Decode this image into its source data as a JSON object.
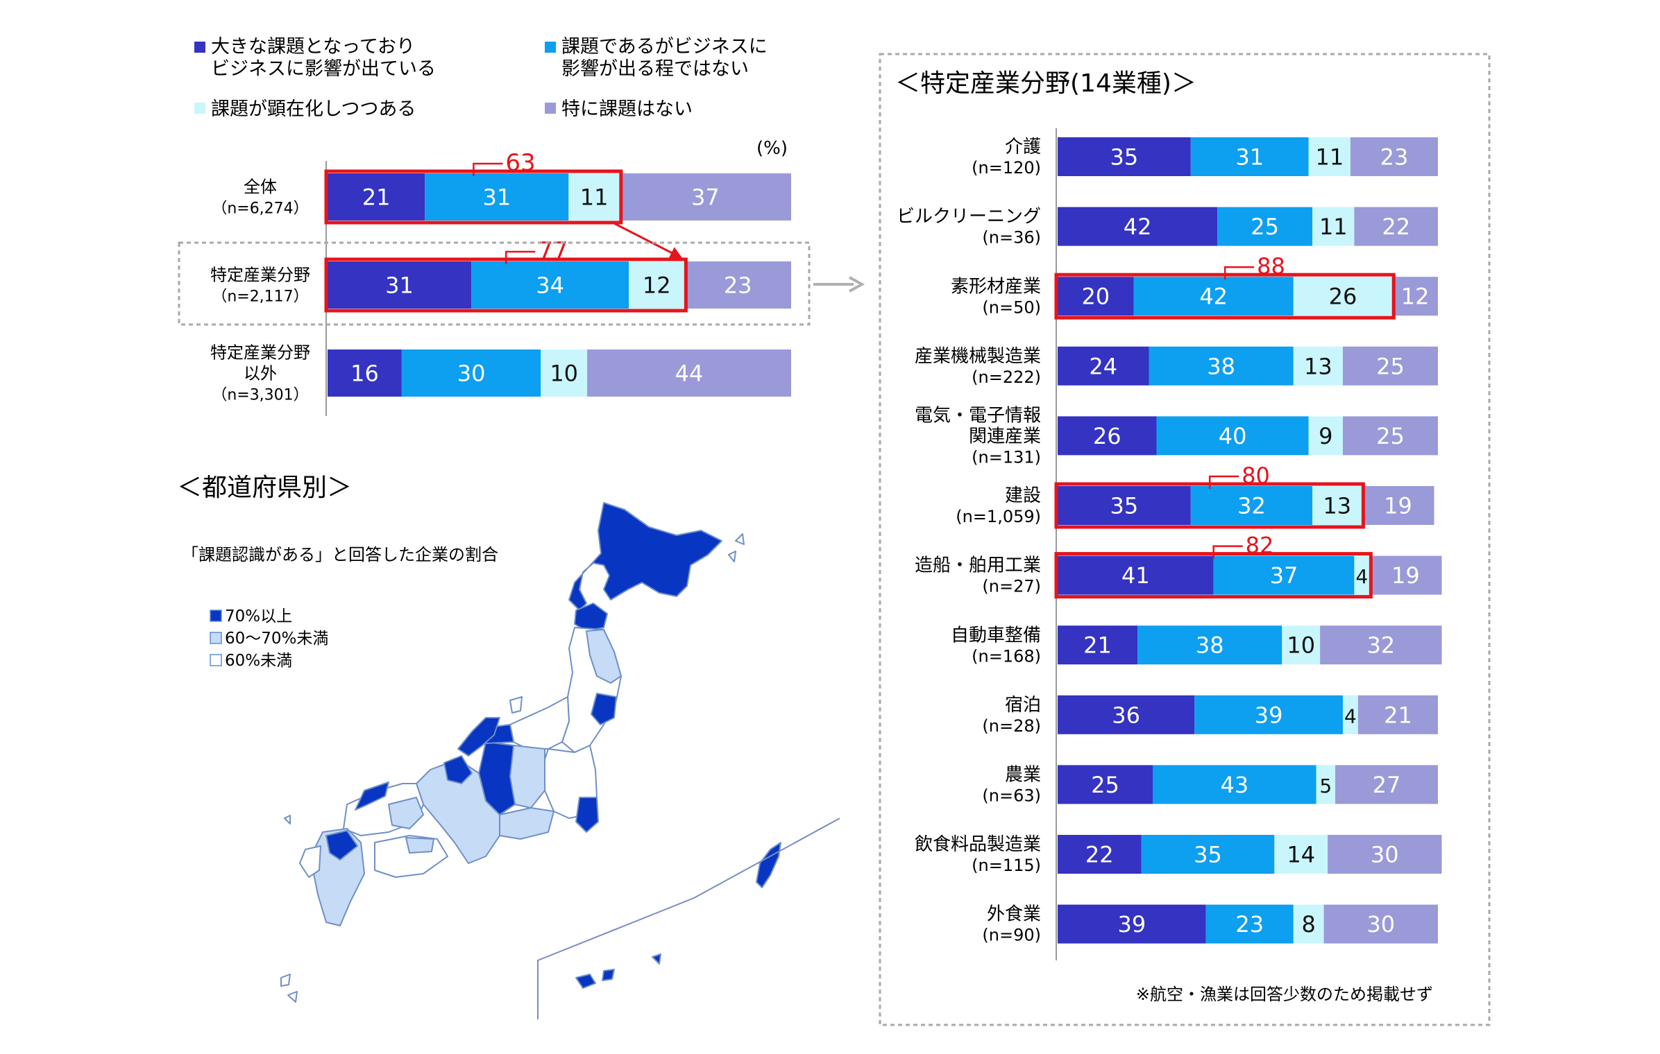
{
  "units": "(%)",
  "legend": [
    {
      "label1": "大きな課題となっており",
      "label2": "ビジネスに影響が出ている",
      "color": "#3433c2"
    },
    {
      "label1": "課題であるがビジネスに",
      "label2": "影響が出る程ではない",
      "color": "#0d9ff0"
    },
    {
      "label1": "課題が顕在化しつつある",
      "label2": "",
      "color": "#c9f6fd"
    },
    {
      "label1": "特に課題はない",
      "label2": "",
      "color": "#9a9ad9"
    }
  ],
  "map": {
    "title": "＜都道府県別＞",
    "caption": "「課題認識がある」と回答した企業の割合",
    "legend": [
      {
        "label": "70%以上",
        "color": "#0836c2"
      },
      {
        "label": "60～70%未満",
        "color": "#c6dbf6"
      },
      {
        "label": "60%未満",
        "color": "#ffffff"
      }
    ]
  },
  "right_panel": {
    "title": "＜特定産業分野(14業種)＞",
    "footnote": "※航空・漁業は回答少数のため掲載せず"
  },
  "chart_data": [
    {
      "type": "bar",
      "orientation": "horizontal",
      "stacked": true,
      "categories": [
        {
          "name": "全体",
          "n": "（n=6,274）"
        },
        {
          "name": "特定産業分野",
          "n": "（n=2,117）"
        },
        {
          "name": "特定産業分野",
          "name2": "以外",
          "n": "（n=3,301）"
        }
      ],
      "series": [
        {
          "name": "大きな課題となっており ビジネスに影響が出ている",
          "values": [
            21,
            31,
            16
          ]
        },
        {
          "name": "課題であるがビジネスに 影響が出る程ではない",
          "values": [
            31,
            34,
            30
          ]
        },
        {
          "name": "課題が顕在化しつつある",
          "values": [
            11,
            12,
            10
          ]
        },
        {
          "name": "特に課題はない",
          "values": [
            37,
            23,
            44
          ]
        }
      ],
      "annotations": [
        {
          "category_index": 0,
          "label": "63"
        },
        {
          "category_index": 1,
          "label": "77"
        }
      ],
      "xlim": [
        0,
        100
      ],
      "ylabel": "(%)"
    },
    {
      "type": "bar",
      "orientation": "horizontal",
      "stacked": true,
      "title": "＜特定産業分野(14業種)＞",
      "categories": [
        {
          "name": "介護",
          "n": "(n=120)"
        },
        {
          "name": "ビルクリーニング",
          "n": "(n=36)"
        },
        {
          "name": "素形材産業",
          "n": "(n=50)"
        },
        {
          "name": "産業機械製造業",
          "n": "(n=222)"
        },
        {
          "name": "電気・電子情報",
          "name2": "関連産業",
          "n": "(n=131)"
        },
        {
          "name": "建設",
          "n": "(n=1,059)"
        },
        {
          "name": "造船・舶用工業",
          "n": "(n=27)"
        },
        {
          "name": "自動車整備",
          "n": "(n=168)"
        },
        {
          "name": "宿泊",
          "n": "(n=28)"
        },
        {
          "name": "農業",
          "n": "(n=63)"
        },
        {
          "name": "飲食料品製造業",
          "n": "(n=115)"
        },
        {
          "name": "外食業",
          "n": "(n=90)"
        }
      ],
      "series": [
        {
          "name": "大きな課題となっており ビジネスに影響が出ている",
          "values": [
            35,
            42,
            20,
            24,
            26,
            35,
            41,
            21,
            36,
            25,
            22,
            39
          ]
        },
        {
          "name": "課題であるがビジネスに 影響が出る程ではない",
          "values": [
            31,
            25,
            42,
            38,
            40,
            32,
            37,
            38,
            39,
            43,
            35,
            23
          ]
        },
        {
          "name": "課題が顕在化しつつある",
          "values": [
            11,
            11,
            26,
            13,
            9,
            13,
            4,
            10,
            4,
            5,
            14,
            8
          ]
        },
        {
          "name": "特に課題はない",
          "values": [
            23,
            22,
            12,
            25,
            25,
            19,
            19,
            32,
            21,
            27,
            30,
            30
          ]
        }
      ],
      "annotations": [
        {
          "category_index": 2,
          "label": "88"
        },
        {
          "category_index": 5,
          "label": "80"
        },
        {
          "category_index": 6,
          "label": "82"
        }
      ],
      "xlim": [
        0,
        100
      ]
    }
  ]
}
